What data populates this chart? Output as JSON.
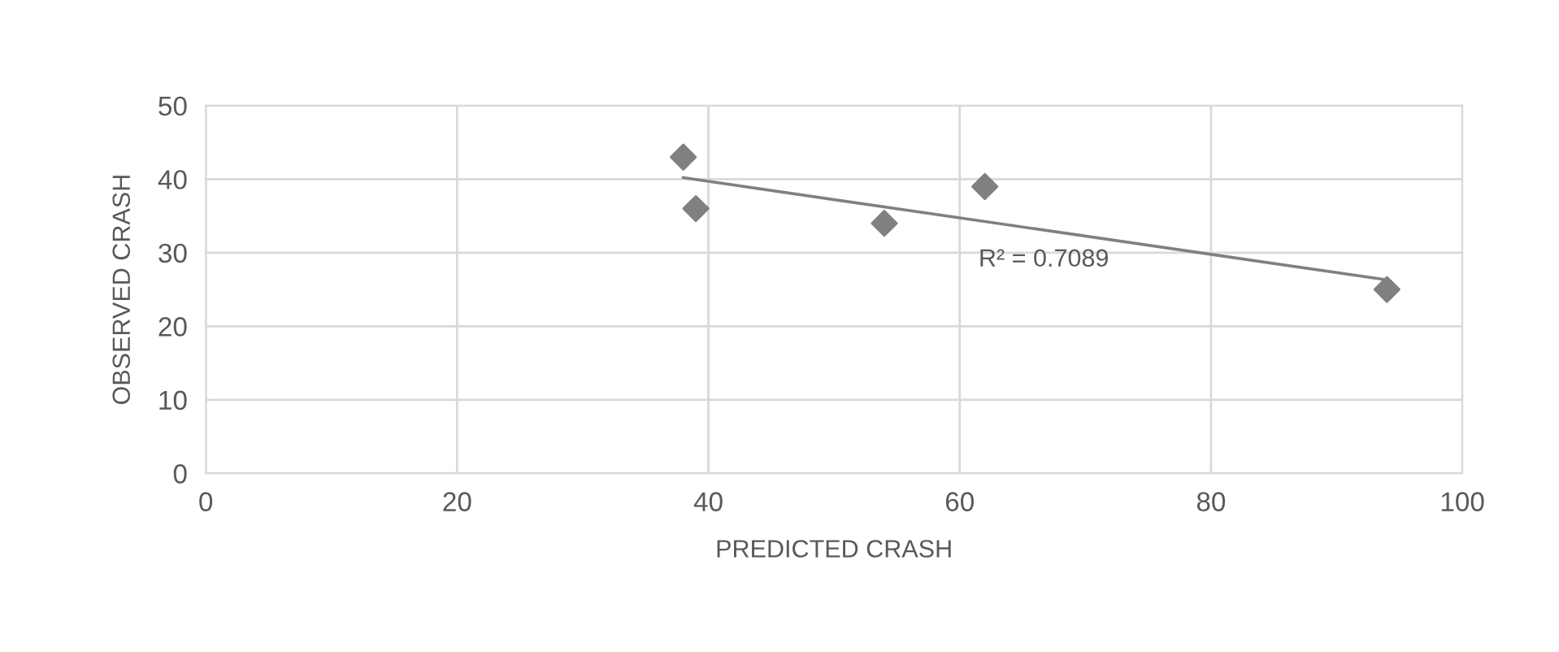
{
  "chart_data": {
    "type": "scatter",
    "xlabel": "PREDICTED CRASH",
    "ylabel": "OBSERVED CRASH",
    "series": [
      {
        "color": "#808080",
        "marker": "diamond",
        "x": [
          38,
          39,
          54,
          62,
          94
        ],
        "values": [
          43,
          36,
          34,
          39,
          25
        ]
      },
      {
        "type": "line",
        "color": "#808080",
        "marker": "none",
        "line_style": "solid",
        "x": [
          38,
          94
        ],
        "values": [
          40.2,
          26.3
        ]
      }
    ],
    "annotations": [
      "R² = 0.7089"
    ],
    "xlim": [
      0,
      100
    ],
    "xticks": [
      0,
      20,
      40,
      60,
      80,
      100
    ],
    "ylim": [
      0,
      50
    ],
    "yticks": [
      0,
      10,
      20,
      30,
      40,
      50
    ],
    "grid": true,
    "legend": false
  }
}
